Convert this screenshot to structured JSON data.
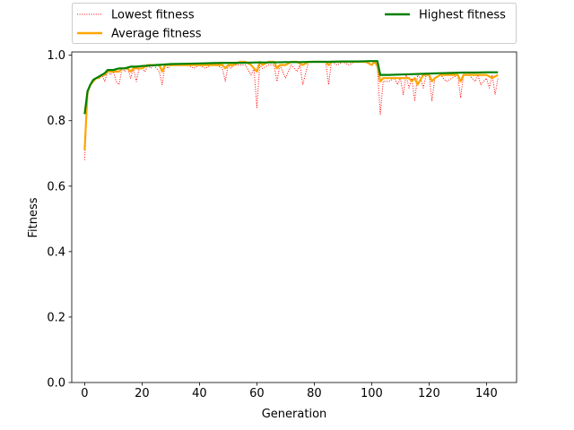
{
  "chart_data": {
    "type": "line",
    "title": "",
    "xlabel": "Generation",
    "ylabel": "Fitness",
    "xlim": [
      -4.5,
      150.5
    ],
    "ylim": [
      0.0,
      1.01
    ],
    "xticks": [
      0,
      20,
      40,
      60,
      80,
      100,
      120,
      140
    ],
    "yticks": [
      0.0,
      0.2,
      0.4,
      0.6,
      0.8,
      1.0
    ],
    "xtick_labels": [
      "0",
      "20",
      "40",
      "60",
      "80",
      "100",
      "120",
      "140"
    ],
    "ytick_labels": [
      "0.0",
      "0.2",
      "0.4",
      "0.6",
      "0.8",
      "1.0"
    ],
    "grid": false,
    "legend": {
      "placement": "top, outside",
      "columns": 2
    },
    "series": [
      {
        "name": "Lowest fitness",
        "color": "#ff0000",
        "style": "dotted",
        "x": [
          0,
          1,
          2,
          3,
          4,
          5,
          6,
          7,
          8,
          9,
          10,
          11,
          12,
          13,
          14,
          15,
          16,
          17,
          18,
          19,
          20,
          21,
          22,
          23,
          24,
          25,
          26,
          27,
          28,
          29,
          30,
          32,
          34,
          36,
          38,
          40,
          42,
          44,
          46,
          48,
          49,
          50,
          51,
          52,
          54,
          56,
          58,
          59,
          60,
          61,
          62,
          64,
          66,
          67,
          68,
          70,
          72,
          74,
          75,
          76,
          78,
          80,
          82,
          84,
          85,
          86,
          88,
          90,
          92,
          94,
          96,
          98,
          100,
          101,
          102,
          103,
          104,
          106,
          108,
          109,
          110,
          111,
          112,
          113,
          114,
          115,
          116,
          117,
          118,
          119,
          120,
          121,
          122,
          124,
          126,
          128,
          130,
          131,
          132,
          134,
          136,
          137,
          138,
          140,
          141,
          142,
          143,
          144
        ],
        "values": [
          0.68,
          0.88,
          0.91,
          0.92,
          0.93,
          0.93,
          0.94,
          0.92,
          0.95,
          0.94,
          0.95,
          0.92,
          0.91,
          0.96,
          0.95,
          0.96,
          0.93,
          0.96,
          0.92,
          0.96,
          0.96,
          0.95,
          0.97,
          0.96,
          0.97,
          0.96,
          0.95,
          0.91,
          0.97,
          0.96,
          0.97,
          0.97,
          0.97,
          0.97,
          0.96,
          0.97,
          0.96,
          0.97,
          0.97,
          0.96,
          0.92,
          0.97,
          0.96,
          0.97,
          0.97,
          0.97,
          0.94,
          0.96,
          0.84,
          0.97,
          0.96,
          0.97,
          0.97,
          0.92,
          0.97,
          0.93,
          0.97,
          0.95,
          0.97,
          0.91,
          0.98,
          0.98,
          0.98,
          0.98,
          0.91,
          0.98,
          0.97,
          0.98,
          0.97,
          0.98,
          0.98,
          0.98,
          0.97,
          0.98,
          0.96,
          0.82,
          0.92,
          0.92,
          0.93,
          0.91,
          0.93,
          0.88,
          0.94,
          0.9,
          0.93,
          0.86,
          0.94,
          0.93,
          0.9,
          0.94,
          0.94,
          0.86,
          0.93,
          0.94,
          0.92,
          0.93,
          0.94,
          0.87,
          0.94,
          0.94,
          0.92,
          0.94,
          0.91,
          0.93,
          0.9,
          0.94,
          0.88,
          0.93
        ]
      },
      {
        "name": "Average fitness",
        "color": "#ffa500",
        "style": "solid",
        "x": [
          0,
          1,
          2,
          3,
          4,
          5,
          6,
          7,
          8,
          9,
          10,
          11,
          12,
          13,
          14,
          15,
          16,
          17,
          18,
          19,
          20,
          22,
          24,
          26,
          27,
          28,
          30,
          32,
          34,
          36,
          38,
          40,
          42,
          44,
          46,
          48,
          49,
          50,
          52,
          54,
          56,
          58,
          59,
          60,
          61,
          62,
          64,
          66,
          67,
          68,
          70,
          72,
          74,
          76,
          78,
          80,
          82,
          84,
          85,
          86,
          88,
          90,
          92,
          94,
          96,
          98,
          100,
          101,
          102,
          103,
          104,
          106,
          108,
          110,
          112,
          113,
          114,
          115,
          116,
          118,
          120,
          121,
          122,
          124,
          126,
          128,
          130,
          131,
          132,
          134,
          136,
          138,
          140,
          142,
          144
        ],
        "values": [
          0.71,
          0.89,
          0.91,
          0.92,
          0.93,
          0.93,
          0.94,
          0.94,
          0.95,
          0.95,
          0.95,
          0.95,
          0.95,
          0.96,
          0.96,
          0.96,
          0.95,
          0.96,
          0.96,
          0.96,
          0.96,
          0.97,
          0.97,
          0.97,
          0.95,
          0.97,
          0.97,
          0.97,
          0.97,
          0.97,
          0.97,
          0.97,
          0.97,
          0.97,
          0.97,
          0.97,
          0.96,
          0.97,
          0.97,
          0.98,
          0.98,
          0.97,
          0.96,
          0.95,
          0.98,
          0.97,
          0.98,
          0.98,
          0.96,
          0.97,
          0.97,
          0.98,
          0.98,
          0.97,
          0.98,
          0.98,
          0.98,
          0.98,
          0.97,
          0.98,
          0.98,
          0.98,
          0.98,
          0.98,
          0.98,
          0.98,
          0.97,
          0.98,
          0.97,
          0.92,
          0.93,
          0.93,
          0.93,
          0.93,
          0.93,
          0.93,
          0.92,
          0.93,
          0.91,
          0.94,
          0.94,
          0.92,
          0.93,
          0.94,
          0.94,
          0.94,
          0.94,
          0.92,
          0.94,
          0.94,
          0.94,
          0.94,
          0.94,
          0.93,
          0.94
        ]
      },
      {
        "name": "Highest fitness",
        "color": "#008000",
        "style": "solid",
        "x": [
          0,
          1,
          2,
          3,
          4,
          5,
          6,
          7,
          8,
          10,
          12,
          14,
          16,
          18,
          20,
          25,
          30,
          35,
          40,
          45,
          50,
          55,
          60,
          65,
          70,
          75,
          80,
          85,
          90,
          95,
          100,
          102,
          103,
          104,
          106,
          110,
          114,
          120,
          124,
          128,
          132,
          136,
          140,
          144
        ],
        "values": [
          0.82,
          0.89,
          0.91,
          0.925,
          0.93,
          0.935,
          0.94,
          0.945,
          0.955,
          0.955,
          0.96,
          0.96,
          0.965,
          0.965,
          0.967,
          0.97,
          0.973,
          0.974,
          0.975,
          0.976,
          0.977,
          0.977,
          0.978,
          0.978,
          0.979,
          0.979,
          0.98,
          0.98,
          0.981,
          0.981,
          0.982,
          0.982,
          0.94,
          0.94,
          0.94,
          0.941,
          0.942,
          0.944,
          0.945,
          0.946,
          0.947,
          0.947,
          0.948,
          0.948
        ]
      }
    ]
  }
}
